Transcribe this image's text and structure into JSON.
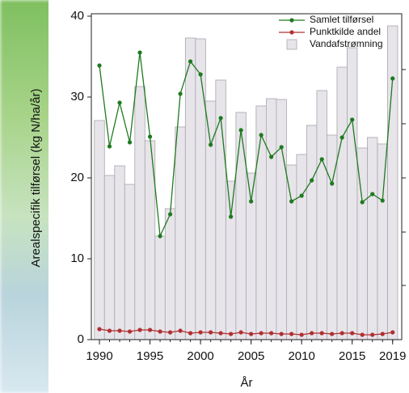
{
  "chart_data": {
    "type": "line-bar",
    "y_label": "Arealspecifik tilførsel (kg N/ha/år)",
    "x_label": "År",
    "x": [
      1990,
      1991,
      1992,
      1993,
      1994,
      1995,
      1996,
      1997,
      1998,
      1999,
      2000,
      2001,
      2002,
      2003,
      2004,
      2005,
      2006,
      2007,
      2008,
      2009,
      2010,
      2011,
      2012,
      2013,
      2014,
      2015,
      2016,
      2017,
      2018,
      2019
    ],
    "series": [
      {
        "name": "Samlet tilførsel",
        "color": "#1f7a1f",
        "kind": "line",
        "values": [
          33.9,
          23.9,
          29.3,
          24.4,
          35.5,
          25.1,
          12.8,
          15.5,
          30.4,
          34.4,
          32.8,
          24.1,
          27.4,
          15.2,
          25.9,
          17.1,
          25.3,
          22.6,
          23.8,
          17.1,
          17.8,
          19.7,
          22.3,
          19.3,
          25.0,
          27.2,
          17.0,
          18.0,
          17.2,
          32.3
        ]
      },
      {
        "name": "Punktkilde andel",
        "color": "#b03030",
        "kind": "line",
        "values": [
          1.3,
          1.1,
          1.1,
          1.0,
          1.2,
          1.2,
          1.0,
          0.9,
          1.1,
          0.8,
          0.9,
          0.9,
          0.8,
          0.7,
          0.9,
          0.7,
          0.8,
          0.8,
          0.7,
          0.7,
          0.6,
          0.8,
          0.8,
          0.7,
          0.8,
          0.8,
          0.6,
          0.6,
          0.7,
          0.9
        ]
      },
      {
        "name": "Vandafstrømning",
        "color": "#e7e4ea",
        "kind": "bar",
        "values": [
          27.1,
          20.3,
          21.5,
          19.2,
          31.3,
          24.6,
          12.8,
          16.2,
          26.3,
          37.3,
          37.2,
          29.5,
          32.1,
          19.6,
          28.1,
          20.6,
          28.9,
          29.8,
          29.7,
          21.6,
          22.9,
          26.5,
          30.8,
          25.3,
          33.7,
          36.1,
          23.7,
          25.0,
          24.2,
          38.8
        ]
      }
    ],
    "xlim": [
      1989.2,
      2019.9
    ],
    "xticks": [
      1990,
      1995,
      2000,
      2005,
      2010,
      2015,
      2019
    ],
    "ylim": [
      0,
      40.3
    ],
    "yticks": [
      0,
      10,
      20,
      30,
      40
    ],
    "legend": "upper right"
  }
}
